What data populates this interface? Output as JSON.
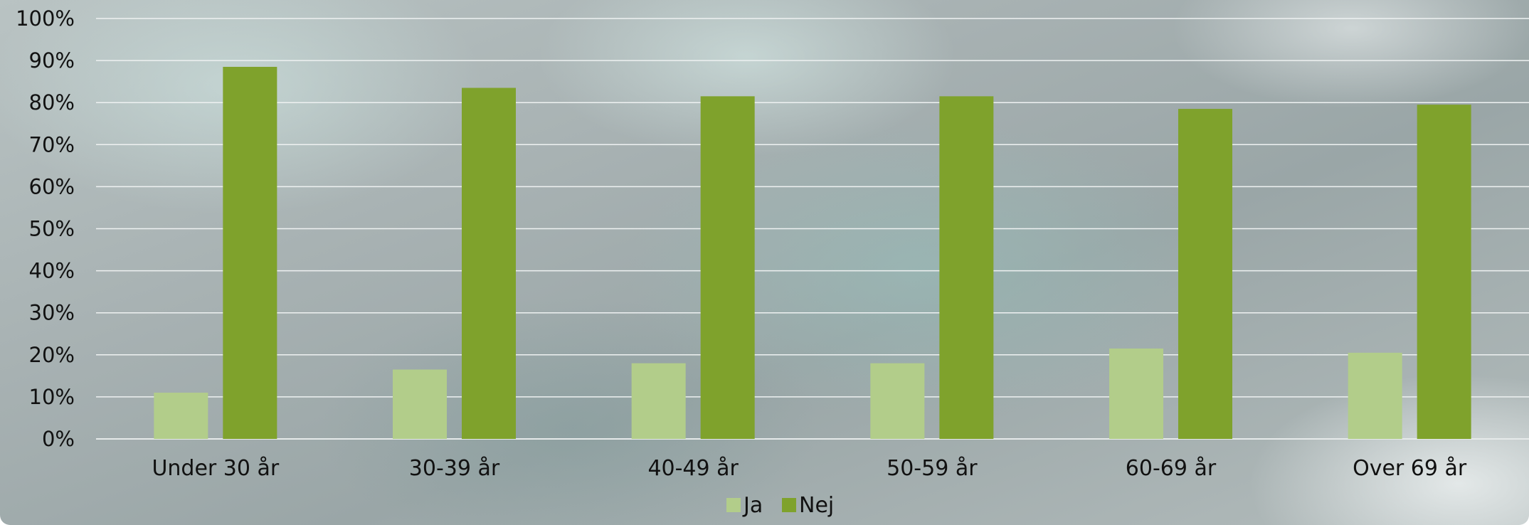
{
  "chart_data": {
    "type": "bar",
    "categories": [
      "Under 30 år",
      "30-39 år",
      "40-49 år",
      "50-59 år",
      "60-69 år",
      "Over 69 år"
    ],
    "series": [
      {
        "name": "Ja",
        "color": "#b2cd8a",
        "values": [
          11,
          16.5,
          18,
          18,
          21.5,
          20.5
        ]
      },
      {
        "name": "Nej",
        "color": "#7fa22c",
        "values": [
          88.5,
          83.5,
          81.5,
          81.5,
          78.5,
          79.5
        ]
      }
    ],
    "yticks": [
      "0%",
      "10%",
      "20%",
      "30%",
      "40%",
      "50%",
      "60%",
      "70%",
      "80%",
      "90%",
      "100%"
    ],
    "ylim": [
      0,
      100
    ],
    "grid": true,
    "legend_position": "bottom-center",
    "title": "",
    "xlabel": "",
    "ylabel": ""
  }
}
